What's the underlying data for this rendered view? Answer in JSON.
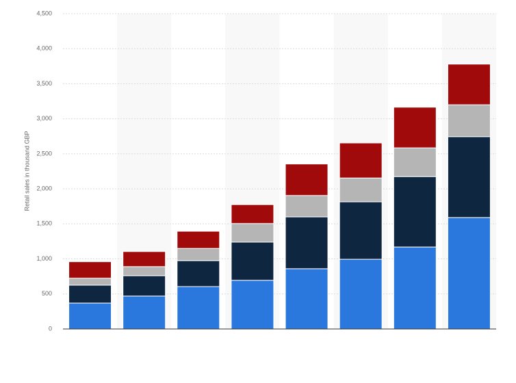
{
  "chart_data": {
    "type": "bar",
    "stacked": true,
    "y_label": "Retail sales in thousand GBP",
    "categories": [
      null,
      null,
      null,
      null,
      null,
      null,
      null,
      null
    ],
    "series": [
      {
        "color": "#2a77dd",
        "values": [
          370,
          470,
          605,
          695,
          860,
          995,
          1170,
          1590
        ]
      },
      {
        "color": "#0f2640",
        "values": [
          255,
          290,
          370,
          545,
          740,
          820,
          1005,
          1155
        ]
      },
      {
        "color": "#b5b5b5",
        "values": [
          100,
          130,
          175,
          265,
          305,
          340,
          410,
          455
        ]
      },
      {
        "color": "#a10a0a",
        "values": [
          235,
          215,
          245,
          270,
          450,
          500,
          580,
          580
        ]
      }
    ],
    "ylim": [
      0,
      4500
    ],
    "yticks": [
      0,
      500,
      {
        "value": 1000,
        "label": "1,000"
      },
      {
        "value": 1500,
        "label": "1,500"
      },
      {
        "value": 2000,
        "label": "2,000"
      },
      {
        "value": 2500,
        "label": "2,500"
      },
      {
        "value": 3000,
        "label": "3,000"
      },
      {
        "value": 3500,
        "label": "3,500"
      },
      {
        "value": 4000,
        "label": "4,000"
      },
      {
        "value": 4500,
        "label": "4,500"
      }
    ],
    "grid": true
  }
}
